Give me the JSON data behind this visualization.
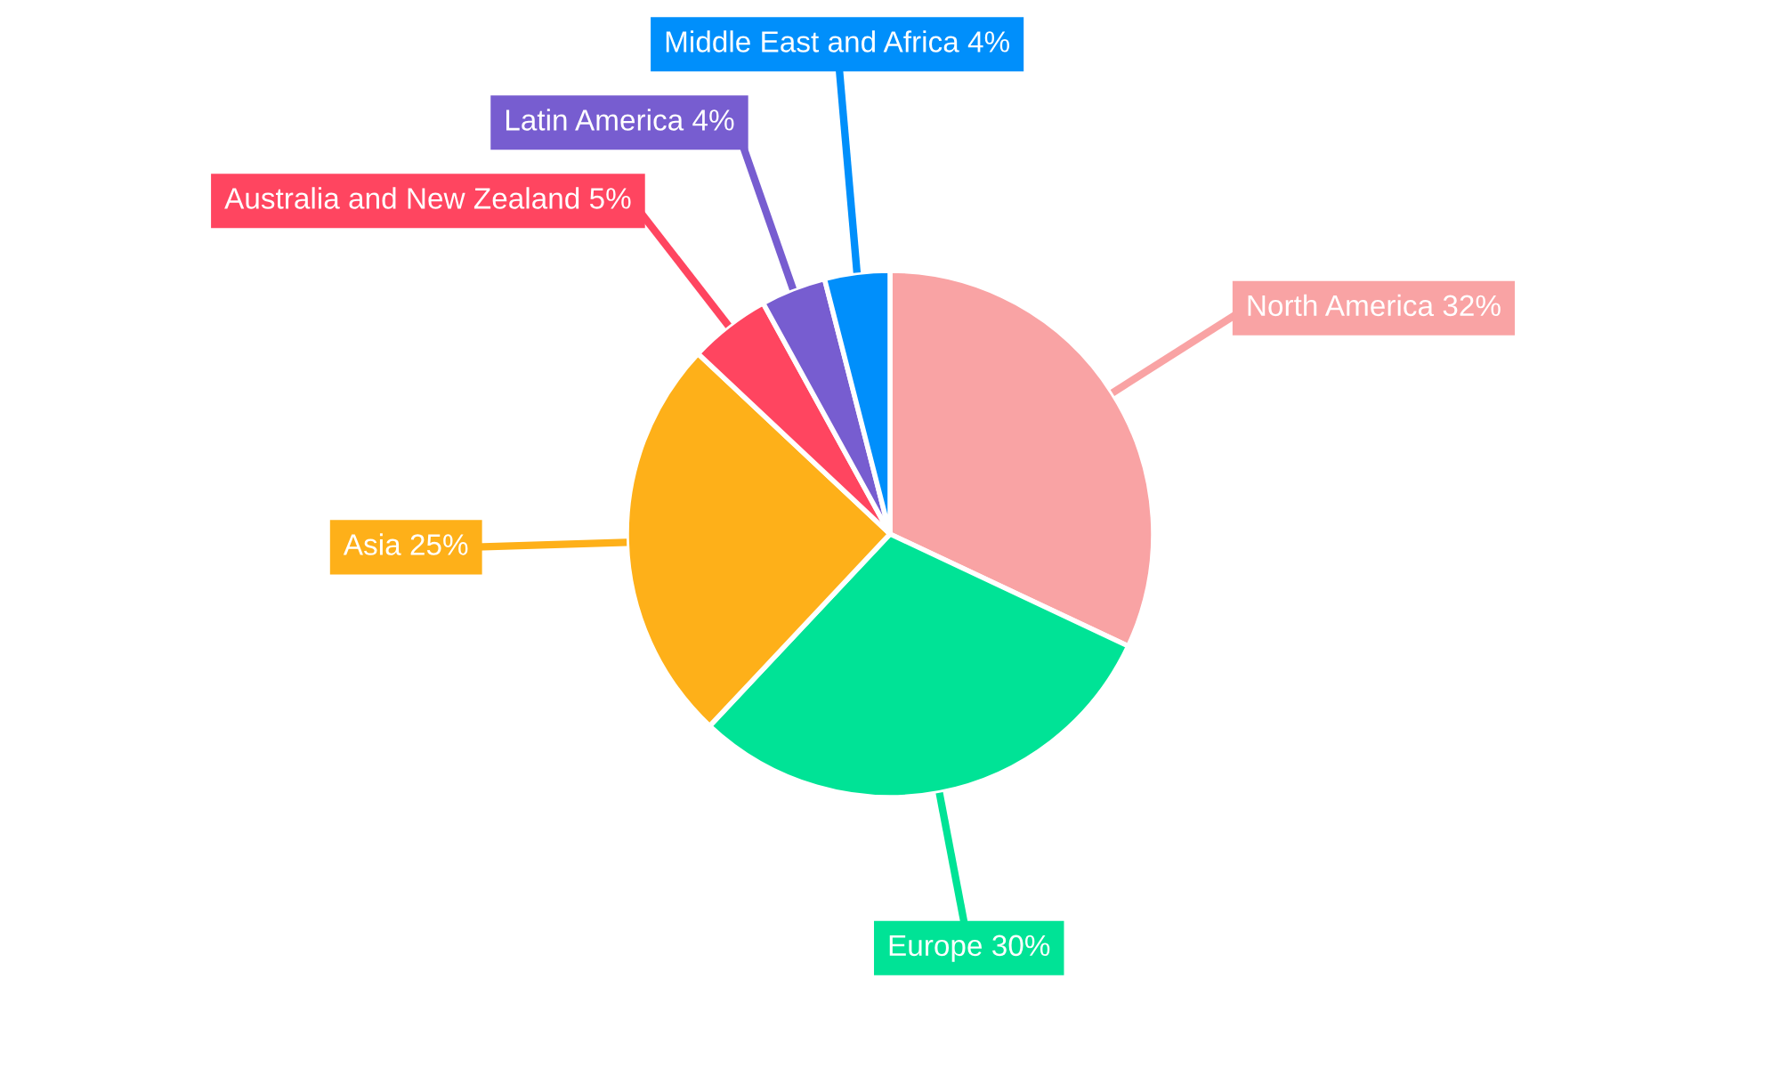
{
  "chart_data": {
    "type": "pie",
    "categories": [
      "North America",
      "Europe",
      "Asia",
      "Australia and New Zealand",
      "Latin America",
      "Middle East and Africa"
    ],
    "values": [
      32,
      30,
      25,
      5,
      4,
      4
    ],
    "colors": [
      "#f9a3a4",
      "#00e396",
      "#feb019",
      "#ff4560",
      "#775dd0",
      "#008ffb"
    ],
    "value_labels": [
      "32%",
      "30%",
      "25%",
      "5%",
      "4%",
      "4%"
    ]
  }
}
